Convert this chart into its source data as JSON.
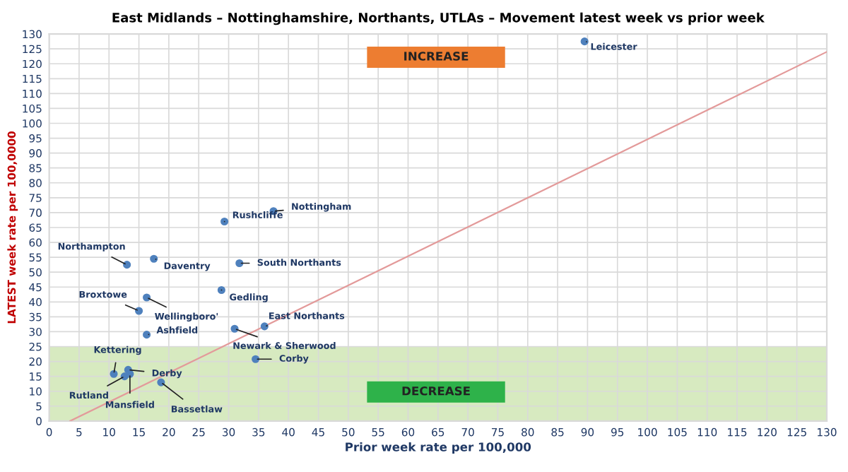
{
  "chart_data": {
    "type": "scatter",
    "title": "East Midlands – Nottinghamshire, Northants, UTLAs – Movement latest week vs prior week",
    "xlabel": "Prior week rate per 100,000",
    "ylabel": "LATEST week rate per 100,0000",
    "series": [
      {
        "color": "#4f81bd",
        "marker": "circle",
        "x": [
          89.5,
          37.5,
          29.3,
          13,
          17.5,
          31.8,
          28.8,
          16.3,
          15,
          16.3,
          31,
          36,
          34.5,
          10.8,
          13.2,
          12.6,
          13.5,
          18.7
        ],
        "values": [
          127.5,
          70.5,
          67,
          52.5,
          54.5,
          53,
          44,
          41.5,
          37,
          29,
          31,
          31.8,
          20.8,
          15.8,
          17.2,
          15,
          15.8,
          13
        ]
      },
      {
        "type": "line",
        "color": "#e39a9a",
        "marker": "none",
        "x": [
          3.5,
          130
        ],
        "values": [
          0,
          124
        ]
      }
    ],
    "bands": [
      {
        "axis": "y",
        "from": 0,
        "to": 25,
        "color": "#d7eac0"
      }
    ],
    "annotations": [
      "INCREASE",
      "DECREASE",
      {
        "text": "Leicester",
        "x": 89.5,
        "y": 127.5
      },
      {
        "text": "Nottingham",
        "x": 37.5,
        "y": 70.5
      },
      {
        "text": "Rushcliffe",
        "x": 29.3,
        "y": 67
      },
      {
        "text": "Northampton",
        "x": 13,
        "y": 52.5
      },
      {
        "text": "Daventry",
        "x": 17.5,
        "y": 54.5
      },
      {
        "text": "South Northants",
        "x": 31.8,
        "y": 53
      },
      {
        "text": "Gedling",
        "x": 28.8,
        "y": 44
      },
      {
        "text": "Wellingboro'",
        "x": 16.3,
        "y": 41.5
      },
      {
        "text": "Broxtowe",
        "x": 15,
        "y": 37
      },
      {
        "text": "Ashfield",
        "x": 16.3,
        "y": 29
      },
      {
        "text": "Newark & Sherwood",
        "x": 31,
        "y": 31
      },
      {
        "text": "East Northants",
        "x": 36,
        "y": 31.8
      },
      {
        "text": "Corby",
        "x": 34.5,
        "y": 20.8
      },
      {
        "text": "Kettering",
        "x": 10.8,
        "y": 15.8
      },
      {
        "text": "Derby",
        "x": 13.2,
        "y": 17.2
      },
      {
        "text": "Rutland",
        "x": 12.6,
        "y": 15
      },
      {
        "text": "Mansfield",
        "x": 13.5,
        "y": 15.8
      },
      {
        "text": "Bassetlaw",
        "x": 18.7,
        "y": 13
      }
    ],
    "xlim": [
      0,
      130
    ],
    "ylim": [
      0,
      130
    ],
    "xticks": [
      0,
      5,
      10,
      15,
      20,
      25,
      30,
      35,
      40,
      45,
      50,
      55,
      60,
      65,
      70,
      75,
      80,
      85,
      90,
      95,
      100,
      105,
      110,
      115,
      120,
      125,
      130
    ],
    "yticks": [
      0,
      5,
      10,
      15,
      20,
      25,
      30,
      35,
      40,
      45,
      50,
      55,
      60,
      65,
      70,
      75,
      80,
      85,
      90,
      95,
      100,
      105,
      110,
      115,
      120,
      125,
      130
    ],
    "grid": true
  }
}
